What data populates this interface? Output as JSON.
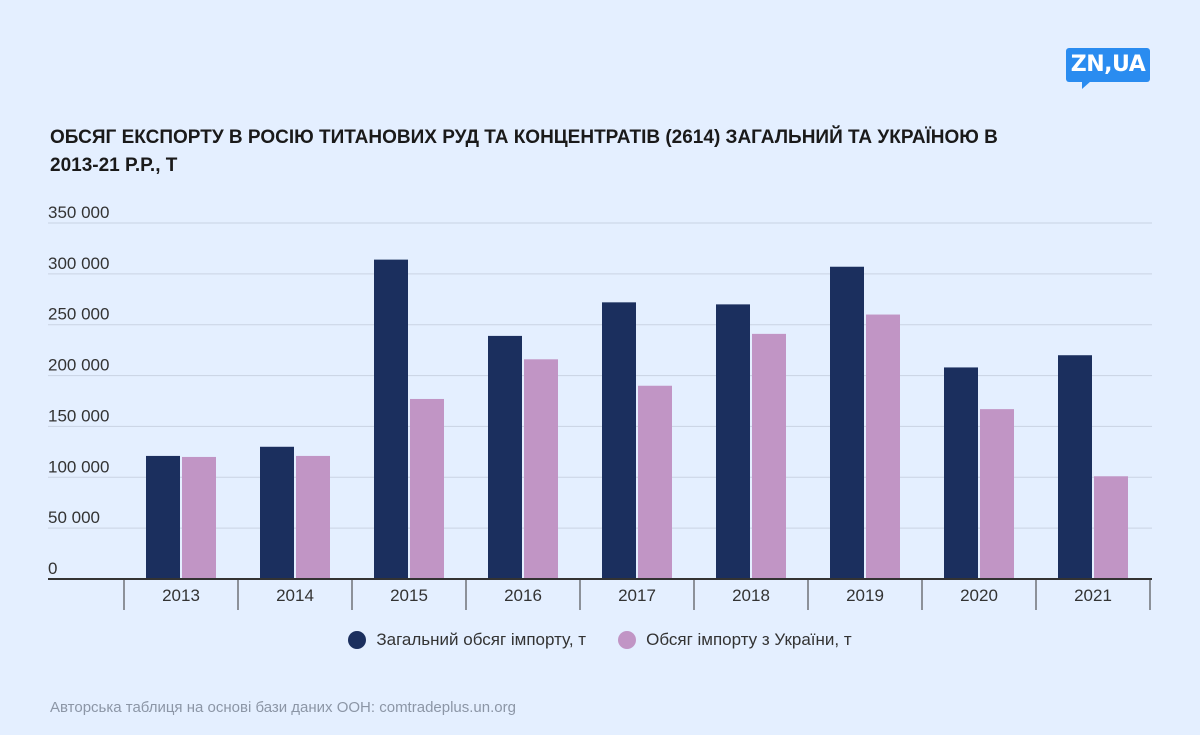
{
  "logo": "ZN,UA",
  "title": "ОБСЯГ ЕКСПОРТУ В РОСІЮ ТИТАНОВИХ РУД ТА КОНЦЕНТРАТІВ (2614) ЗАГАЛЬНИЙ ТА УКРАЇНОЮ В 2013-21 Р.Р., Т",
  "source": "Авторська таблиця на основі бази даних ООН: comtradeplus.un.org",
  "colors": {
    "total": "#1b2f5e",
    "ukraine": "#c195c5",
    "grid": "#c9d3e3",
    "axis": "#333333"
  },
  "chart_data": {
    "type": "bar",
    "categories": [
      "2013",
      "2014",
      "2015",
      "2016",
      "2017",
      "2018",
      "2019",
      "2020",
      "2021"
    ],
    "series": [
      {
        "name": "Загальний обсяг імпорту, т",
        "values": [
          121000,
          130000,
          314000,
          239000,
          272000,
          270000,
          307000,
          208000,
          220000
        ]
      },
      {
        "name": "Обсяг імпорту з України, т",
        "values": [
          120000,
          121000,
          177000,
          216000,
          190000,
          241000,
          260000,
          167000,
          101000
        ]
      }
    ],
    "ylim": [
      0,
      350000
    ],
    "yticks": [
      0,
      50000,
      100000,
      150000,
      200000,
      250000,
      300000,
      350000
    ],
    "ytick_labels": [
      "0",
      "50 000",
      "100 000",
      "150 000",
      "200 000",
      "250 000",
      "300 000",
      "350 000"
    ],
    "grid": true,
    "legend_position": "bottom"
  }
}
